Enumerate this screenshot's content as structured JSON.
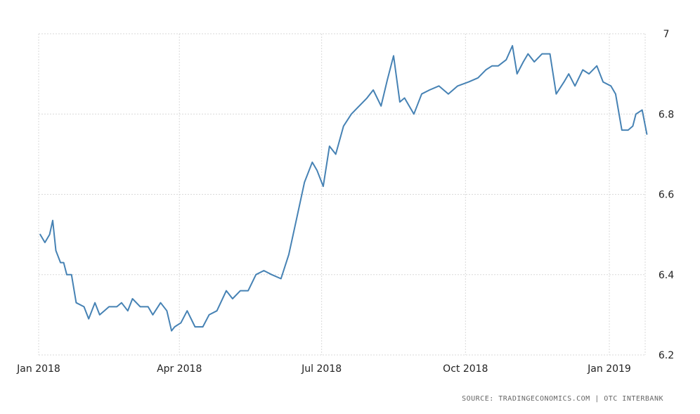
{
  "source_note": "SOURCE: TRADINGECONOMICS.COM | OTC INTERBANK",
  "chart_data": {
    "type": "line",
    "title": "",
    "xlabel": "",
    "ylabel": "",
    "ylim": [
      6.2,
      7.0
    ],
    "y_ticks": [
      "6.2",
      "6.4",
      "6.6",
      "6.8",
      "7"
    ],
    "y_tick_values": [
      6.2,
      6.4,
      6.6,
      6.8,
      7.0
    ],
    "x_ticks": [
      "Jan 2018",
      "Apr 2018",
      "Jul 2018",
      "Oct 2018",
      "Jan 2019"
    ],
    "x_tick_dates": [
      "2018-01-01",
      "2018-04-01",
      "2018-07-01",
      "2018-10-01",
      "2019-01-01"
    ],
    "xlim": [
      "2018-01-01",
      "2019-01-31"
    ],
    "grid": true,
    "line_color": "#4682b4",
    "series": [
      {
        "x": [
          "2018-01-02",
          "2018-01-05",
          "2018-01-08",
          "2018-01-10",
          "2018-01-12",
          "2018-01-15",
          "2018-01-17",
          "2018-01-19",
          "2018-01-22",
          "2018-01-25",
          "2018-01-30",
          "2018-02-02",
          "2018-02-06",
          "2018-02-09",
          "2018-02-12",
          "2018-02-15",
          "2018-02-20",
          "2018-02-23",
          "2018-02-27",
          "2018-03-02",
          "2018-03-07",
          "2018-03-12",
          "2018-03-15",
          "2018-03-20",
          "2018-03-24",
          "2018-03-27",
          "2018-03-29",
          "2018-04-02",
          "2018-04-06",
          "2018-04-11",
          "2018-04-16",
          "2018-04-20",
          "2018-04-25",
          "2018-05-01",
          "2018-05-05",
          "2018-05-10",
          "2018-05-15",
          "2018-05-20",
          "2018-05-25",
          "2018-05-30",
          "2018-06-05",
          "2018-06-10",
          "2018-06-15",
          "2018-06-20",
          "2018-06-25",
          "2018-06-28",
          "2018-07-02",
          "2018-07-06",
          "2018-07-10",
          "2018-07-15",
          "2018-07-20",
          "2018-07-25",
          "2018-07-30",
          "2018-08-03",
          "2018-08-08",
          "2018-08-12",
          "2018-08-16",
          "2018-08-20",
          "2018-08-23",
          "2018-08-26",
          "2018-08-29",
          "2018-09-03",
          "2018-09-08",
          "2018-09-14",
          "2018-09-20",
          "2018-09-26",
          "2018-10-03",
          "2018-10-09",
          "2018-10-14",
          "2018-10-18",
          "2018-10-22",
          "2018-10-27",
          "2018-10-31",
          "2018-11-03",
          "2018-11-07",
          "2018-11-10",
          "2018-11-14",
          "2018-11-19",
          "2018-11-24",
          "2018-11-28",
          "2018-12-03",
          "2018-12-06",
          "2018-12-10",
          "2018-12-15",
          "2018-12-19",
          "2018-12-24",
          "2018-12-28",
          "2019-01-02",
          "2019-01-05",
          "2019-01-09",
          "2019-01-13",
          "2019-01-16",
          "2019-01-18",
          "2019-01-22",
          "2019-01-25"
        ],
        "values": [
          6.5,
          6.48,
          6.5,
          6.535,
          6.46,
          6.43,
          6.43,
          6.4,
          6.4,
          6.33,
          6.32,
          6.29,
          6.33,
          6.3,
          6.31,
          6.32,
          6.32,
          6.33,
          6.31,
          6.34,
          6.32,
          6.32,
          6.3,
          6.33,
          6.31,
          6.26,
          6.27,
          6.28,
          6.31,
          6.27,
          6.27,
          6.3,
          6.31,
          6.36,
          6.34,
          6.36,
          6.36,
          6.4,
          6.41,
          6.4,
          6.39,
          6.45,
          6.54,
          6.63,
          6.68,
          6.66,
          6.62,
          6.72,
          6.7,
          6.77,
          6.8,
          6.82,
          6.84,
          6.86,
          6.82,
          6.885,
          6.945,
          6.83,
          6.84,
          6.82,
          6.8,
          6.85,
          6.86,
          6.87,
          6.85,
          6.87,
          6.88,
          6.89,
          6.91,
          6.92,
          6.92,
          6.935,
          6.97,
          6.9,
          6.93,
          6.95,
          6.93,
          6.95,
          6.95,
          6.85,
          6.88,
          6.9,
          6.87,
          6.91,
          6.9,
          6.92,
          6.88,
          6.87,
          6.85,
          6.76,
          6.76,
          6.77,
          6.8,
          6.81,
          6.75
        ]
      }
    ]
  }
}
